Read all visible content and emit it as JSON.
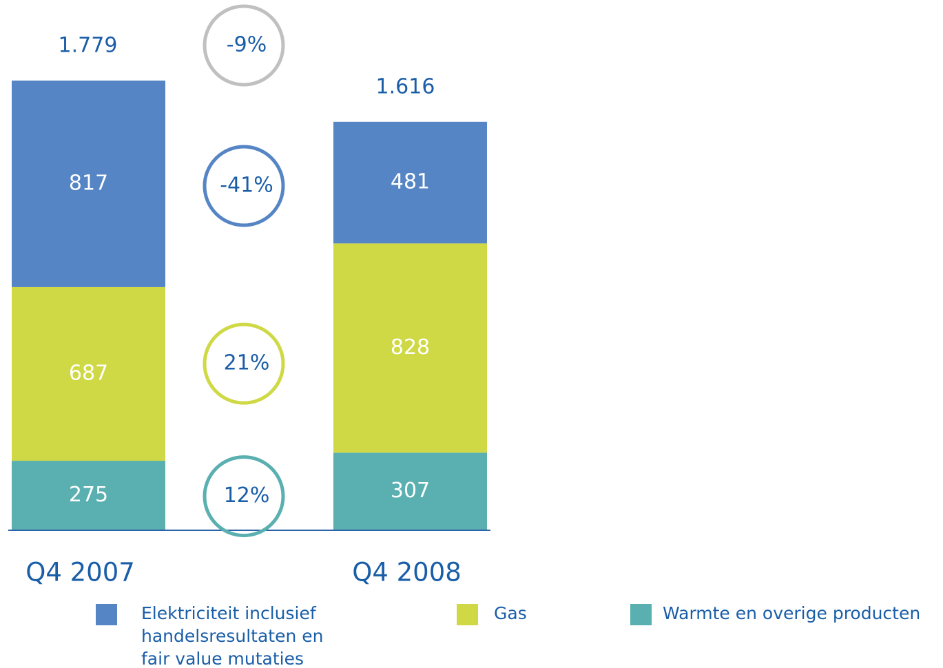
{
  "chart_data": {
    "type": "stacked_bar",
    "categories": [
      "Q4 2007",
      "Q4 2008"
    ],
    "series": [
      {
        "name": "Warmte en overige producten",
        "color": "#5aafb0",
        "values": [
          275,
          307
        ],
        "change": 12,
        "change_label": "12%"
      },
      {
        "name": "Gas",
        "color": "#cfd945",
        "values": [
          687,
          828
        ],
        "change": 21,
        "change_label": "21%"
      },
      {
        "name": "Elektriciteit inclusief handelsresultaten en fair value mutaties",
        "color": "#5585c5",
        "values": [
          817,
          481
        ],
        "change": -41,
        "change_label": "-41%"
      }
    ],
    "totals": {
      "values": [
        1779,
        1616
      ],
      "value_labels": [
        "1.779",
        "1.616"
      ],
      "change": -9,
      "change_label": "-9%",
      "color": "#c0c0c0"
    },
    "legend_order": [
      2,
      1,
      0
    ]
  }
}
